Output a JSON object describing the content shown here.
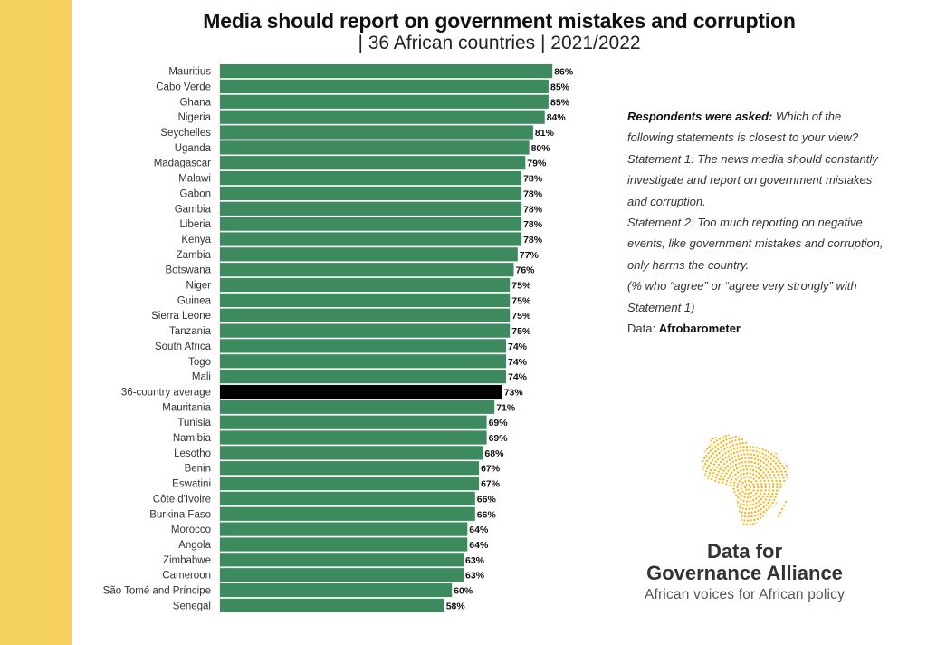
{
  "header": {
    "title": "Media should report on government mistakes and corruption",
    "subtitle": "| 36 African countries | 2021/2022"
  },
  "chart_data": {
    "type": "bar",
    "orientation": "horizontal",
    "title": "Media should report on government mistakes and corruption",
    "subtitle": "| 36 African countries | 2021/2022",
    "xlabel": "",
    "ylabel": "",
    "xlim": [
      0,
      100
    ],
    "grid": false,
    "value_suffix": "%",
    "colors": {
      "country": "#3d8a5f",
      "average": "#000000"
    },
    "categories": [
      "Mauritius",
      "Cabo Verde",
      "Ghana",
      "Nigeria",
      "Seychelles",
      "Uganda",
      "Madagascar",
      "Malawi",
      "Gabon",
      "Gambia",
      "Liberia",
      "Kenya",
      "Zambia",
      "Botswana",
      "Niger",
      "Guinea",
      "Sierra Leone",
      "Tanzania",
      "South Africa",
      "Togo",
      "Mali",
      "36-country average",
      "Mauritania",
      "Tunisia",
      "Namibia",
      "Lesotho",
      "Benin",
      "Eswatini",
      "Côte d'Ivoire",
      "Burkina Faso",
      "Morocco",
      "Angola",
      "Zimbabwe",
      "Cameroon",
      "São Tomé and Príncipe",
      "Senegal"
    ],
    "values": [
      86,
      85,
      85,
      84,
      81,
      80,
      79,
      78,
      78,
      78,
      78,
      78,
      77,
      76,
      75,
      75,
      75,
      75,
      74,
      74,
      74,
      73,
      71,
      69,
      69,
      68,
      67,
      67,
      66,
      66,
      64,
      64,
      63,
      63,
      60,
      58
    ],
    "highlight": "36-country average"
  },
  "notes": {
    "asked_label": "Respondents were asked:",
    "asked_text": " Which of the following statements is closest to your view?",
    "statement1": "Statement 1: The news media should constantly investigate and report on government mistakes and corruption.",
    "statement2": "Statement 2: Too much reporting on negative events, like government mistakes and corruption, only harms the country.",
    "measure": "(% who “agree” or “agree very strongly” with Statement 1)",
    "data_label": "Data: ",
    "data_source": "Afrobarometer"
  },
  "logo": {
    "icon": "africa-dotted-map-icon",
    "color": "#f6b81c",
    "title_line1": "Data for",
    "title_line2": "Governance Alliance",
    "tagline": "African voices for African policy"
  }
}
